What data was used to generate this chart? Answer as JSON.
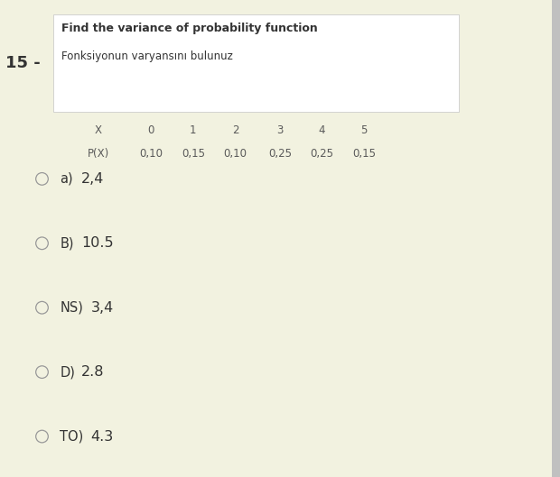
{
  "page_bg": "#f2f2e0",
  "title_bold": "Find the variance of probability function",
  "title_sub": "Fonksiyonun varyansını bulunuz",
  "question_num": "15 -",
  "table_headers": [
    "X",
    "0",
    "1",
    "2",
    "3",
    "4",
    "5"
  ],
  "table_row2": [
    "P(X)",
    "0,10",
    "0,15",
    "0,10",
    "0,25",
    "0,25",
    "0,15"
  ],
  "options": [
    {
      "label": "a)",
      "value": "2,4"
    },
    {
      "label": "B)",
      "value": "10.5"
    },
    {
      "label": "NS)",
      "value": "3,4"
    },
    {
      "label": "D)",
      "value": "2.8"
    },
    {
      "label": "TO)",
      "value": "4.3"
    }
  ],
  "title_fontsize": 9.0,
  "sub_fontsize": 8.5,
  "table_fontsize": 8.5,
  "option_label_fontsize": 10.5,
  "option_value_fontsize": 11.5,
  "question_fontsize": 13,
  "text_color": "#333333",
  "table_text_color": "#5a5a5a",
  "circle_color": "#999999",
  "white_box_color": "#ffffff",
  "white_box_border": "#cccccc",
  "scroll_bar_color": "#c0c0c0"
}
